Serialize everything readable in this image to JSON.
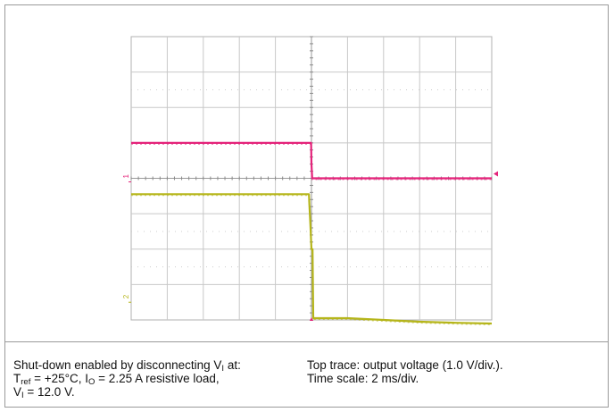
{
  "chart_data": {
    "type": "line",
    "grid": "on",
    "x": {
      "label": "",
      "units_per_div": "2 ms/div",
      "divisions": 10,
      "trigger_div": 5
    },
    "y": {
      "label": "",
      "divisions": 8
    },
    "series": [
      {
        "color": "#e4237a",
        "channel_marker": "1",
        "points": [
          [
            0,
            5.0
          ],
          [
            4.99,
            5.0
          ],
          [
            5.0,
            4.4
          ],
          [
            5.02,
            4.0
          ],
          [
            10,
            4.0
          ]
        ]
      },
      {
        "color": "#b5b51a",
        "channel_marker": "2",
        "points": [
          [
            0,
            3.55
          ],
          [
            4.93,
            3.55
          ],
          [
            4.94,
            3.3
          ],
          [
            4.97,
            2.7
          ],
          [
            5.0,
            2.0
          ],
          [
            5.03,
            2.0
          ],
          [
            5.05,
            0.05
          ],
          [
            5.5,
            0.05
          ],
          [
            6.0,
            0.05
          ],
          [
            7.0,
            0.0
          ],
          [
            8.0,
            -0.05
          ],
          [
            9.0,
            -0.08
          ],
          [
            10,
            -0.1
          ]
        ]
      }
    ]
  },
  "caption": {
    "left_line1_pre": "Shut-down enabled by disconnecting V",
    "left_line1_sub": "I",
    "left_line1_post": " at:",
    "left_line2_a": "T",
    "left_line2_a_sub": "ref",
    "left_line2_b": " = +25°C, I",
    "left_line2_b_sub": "O",
    "left_line2_c": " = 2.25 A resistive load,",
    "left_line3_a": "V",
    "left_line3_a_sub": "I",
    "left_line3_b": " = 12.0 V.",
    "right_line1": "Top trace: output voltage (1.0 V/div.).",
    "right_line2": "Time scale: 2 ms/div."
  }
}
